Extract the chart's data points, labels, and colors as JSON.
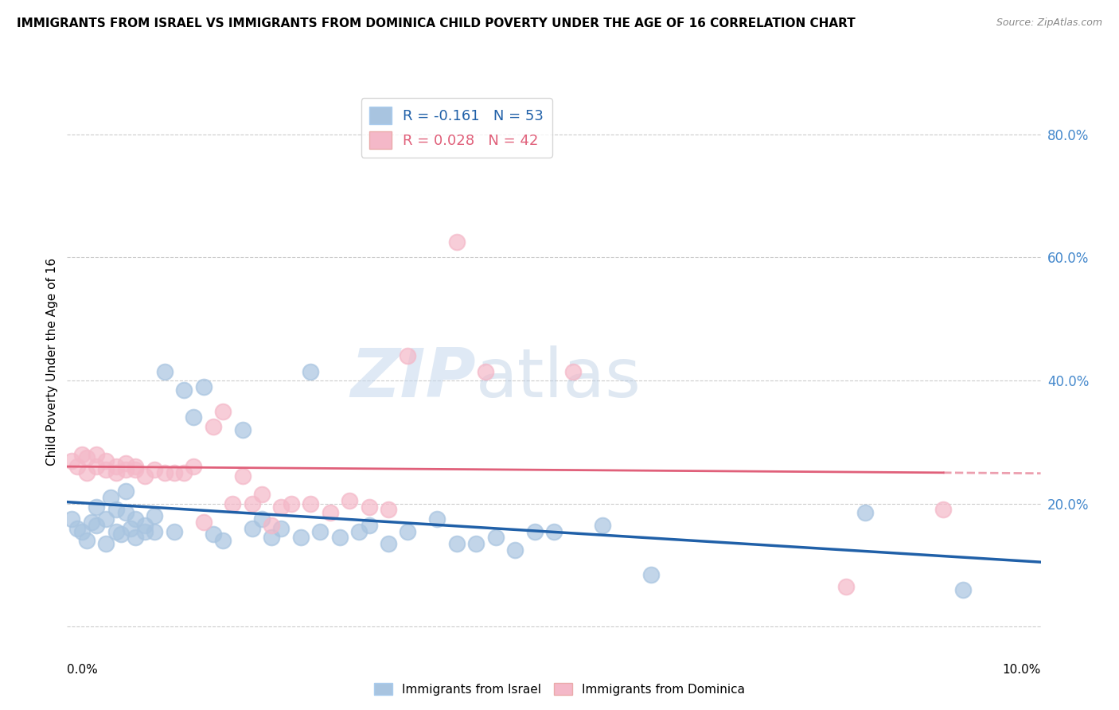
{
  "title": "IMMIGRANTS FROM ISRAEL VS IMMIGRANTS FROM DOMINICA CHILD POVERTY UNDER THE AGE OF 16 CORRELATION CHART",
  "source": "Source: ZipAtlas.com",
  "ylabel": "Child Poverty Under the Age of 16",
  "y_ticks": [
    0.0,
    0.2,
    0.4,
    0.6,
    0.8
  ],
  "xlim": [
    0.0,
    0.1
  ],
  "ylim": [
    -0.02,
    0.88
  ],
  "israel_R": -0.161,
  "israel_N": 53,
  "dominica_R": 0.028,
  "dominica_N": 42,
  "israel_color": "#a8c4e0",
  "dominica_color": "#f4b8c8",
  "israel_line_color": "#2060a8",
  "dominica_line_color": "#e0607a",
  "legend_israel": "Immigrants from Israel",
  "legend_dominica": "Immigrants from Dominica",
  "background_color": "#ffffff",
  "grid_color": "#cccccc",
  "watermark_zip": "ZIP",
  "watermark_atlas": "atlas",
  "israel_x": [
    0.0005,
    0.001,
    0.0015,
    0.002,
    0.0025,
    0.003,
    0.003,
    0.004,
    0.004,
    0.0045,
    0.005,
    0.005,
    0.0055,
    0.006,
    0.006,
    0.0065,
    0.007,
    0.007,
    0.008,
    0.008,
    0.009,
    0.009,
    0.01,
    0.011,
    0.012,
    0.013,
    0.014,
    0.015,
    0.016,
    0.018,
    0.019,
    0.02,
    0.021,
    0.022,
    0.024,
    0.025,
    0.026,
    0.028,
    0.03,
    0.031,
    0.033,
    0.035,
    0.038,
    0.04,
    0.042,
    0.044,
    0.046,
    0.048,
    0.05,
    0.055,
    0.06,
    0.082,
    0.092
  ],
  "israel_y": [
    0.175,
    0.16,
    0.155,
    0.14,
    0.17,
    0.165,
    0.195,
    0.175,
    0.135,
    0.21,
    0.19,
    0.155,
    0.15,
    0.22,
    0.185,
    0.16,
    0.175,
    0.145,
    0.165,
    0.155,
    0.155,
    0.18,
    0.415,
    0.155,
    0.385,
    0.34,
    0.39,
    0.15,
    0.14,
    0.32,
    0.16,
    0.175,
    0.145,
    0.16,
    0.145,
    0.415,
    0.155,
    0.145,
    0.155,
    0.165,
    0.135,
    0.155,
    0.175,
    0.135,
    0.135,
    0.145,
    0.125,
    0.155,
    0.155,
    0.165,
    0.085,
    0.185,
    0.06
  ],
  "dominica_x": [
    0.0005,
    0.001,
    0.0015,
    0.002,
    0.002,
    0.003,
    0.003,
    0.004,
    0.004,
    0.005,
    0.005,
    0.006,
    0.006,
    0.007,
    0.007,
    0.008,
    0.009,
    0.01,
    0.011,
    0.012,
    0.013,
    0.014,
    0.015,
    0.016,
    0.017,
    0.018,
    0.019,
    0.02,
    0.021,
    0.022,
    0.023,
    0.025,
    0.027,
    0.029,
    0.031,
    0.033,
    0.035,
    0.04,
    0.043,
    0.052,
    0.08,
    0.09
  ],
  "dominica_y": [
    0.27,
    0.26,
    0.28,
    0.25,
    0.275,
    0.26,
    0.28,
    0.255,
    0.27,
    0.26,
    0.25,
    0.265,
    0.255,
    0.255,
    0.26,
    0.245,
    0.255,
    0.25,
    0.25,
    0.25,
    0.26,
    0.17,
    0.325,
    0.35,
    0.2,
    0.245,
    0.2,
    0.215,
    0.165,
    0.195,
    0.2,
    0.2,
    0.185,
    0.205,
    0.195,
    0.19,
    0.44,
    0.625,
    0.415,
    0.415,
    0.065,
    0.19
  ]
}
